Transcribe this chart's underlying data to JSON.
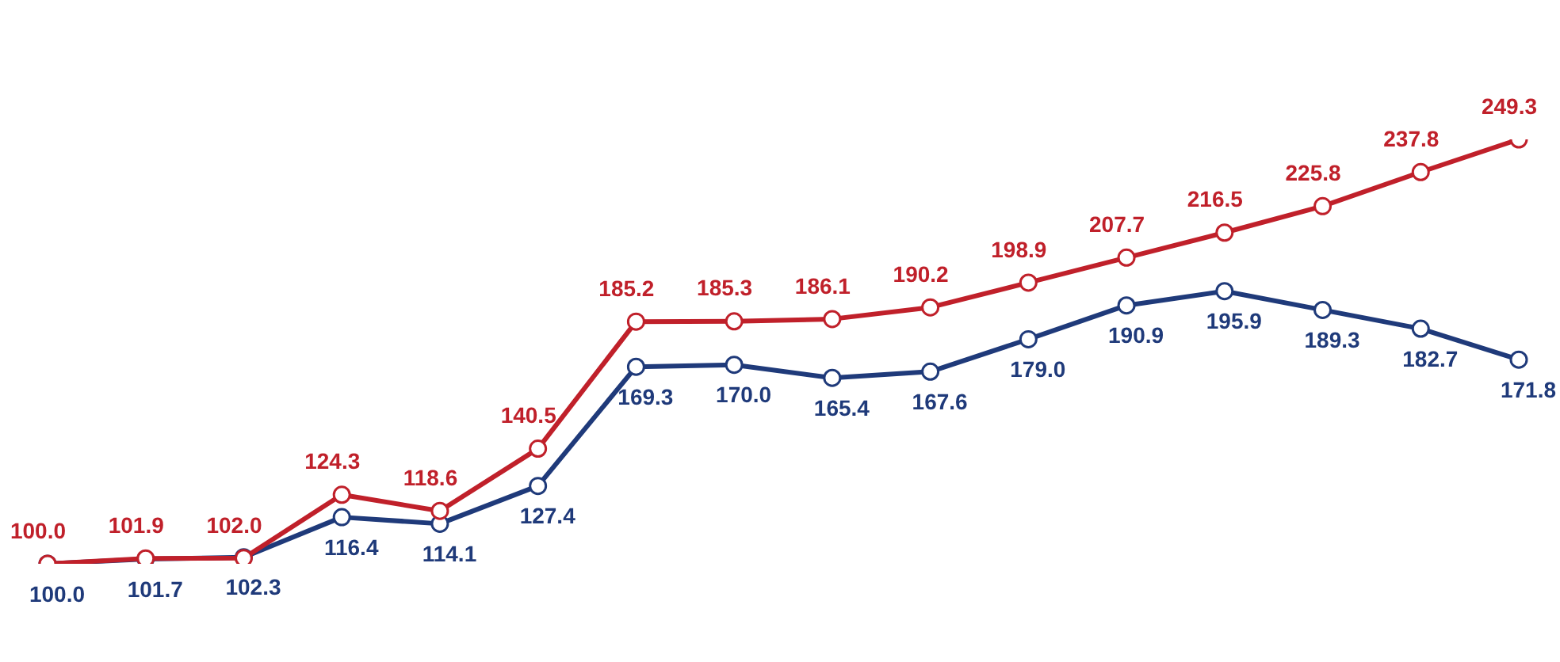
{
  "chart_data": {
    "type": "line",
    "categories": [
      null,
      null,
      null,
      null,
      null,
      null,
      null,
      null,
      null,
      null,
      null,
      null,
      null,
      null,
      null,
      null
    ],
    "series": [
      {
        "color": "#c0202a",
        "values": [
          100.0,
          101.9,
          102.0,
          124.3,
          118.6,
          140.5,
          185.2,
          185.3,
          186.1,
          190.2,
          198.9,
          207.7,
          216.5,
          225.8,
          237.8,
          249.3
        ],
        "value_labels": [
          "100.0",
          "101.9",
          "102.0",
          "124.3",
          "118.6",
          "140.5",
          "185.2",
          "185.3",
          "186.1",
          "190.2",
          "198.9",
          "207.7",
          "216.5",
          "225.8",
          "237.8",
          "249.3"
        ]
      },
      {
        "color": "#1f3a7a",
        "values": [
          100.0,
          101.7,
          102.3,
          116.4,
          114.1,
          127.4,
          169.3,
          170.0,
          165.4,
          167.6,
          179.0,
          190.9,
          195.9,
          189.3,
          182.7,
          171.8
        ],
        "value_labels": [
          "100.0",
          "101.7",
          "102.3",
          "116.4",
          "114.1",
          "127.4",
          "169.3",
          "170.0",
          "165.4",
          "167.6",
          "179.0",
          "190.9",
          "195.9",
          "189.3",
          "182.7",
          "171.8"
        ]
      }
    ],
    "marker": "circle",
    "line_style": "solid",
    "legend": false
  }
}
